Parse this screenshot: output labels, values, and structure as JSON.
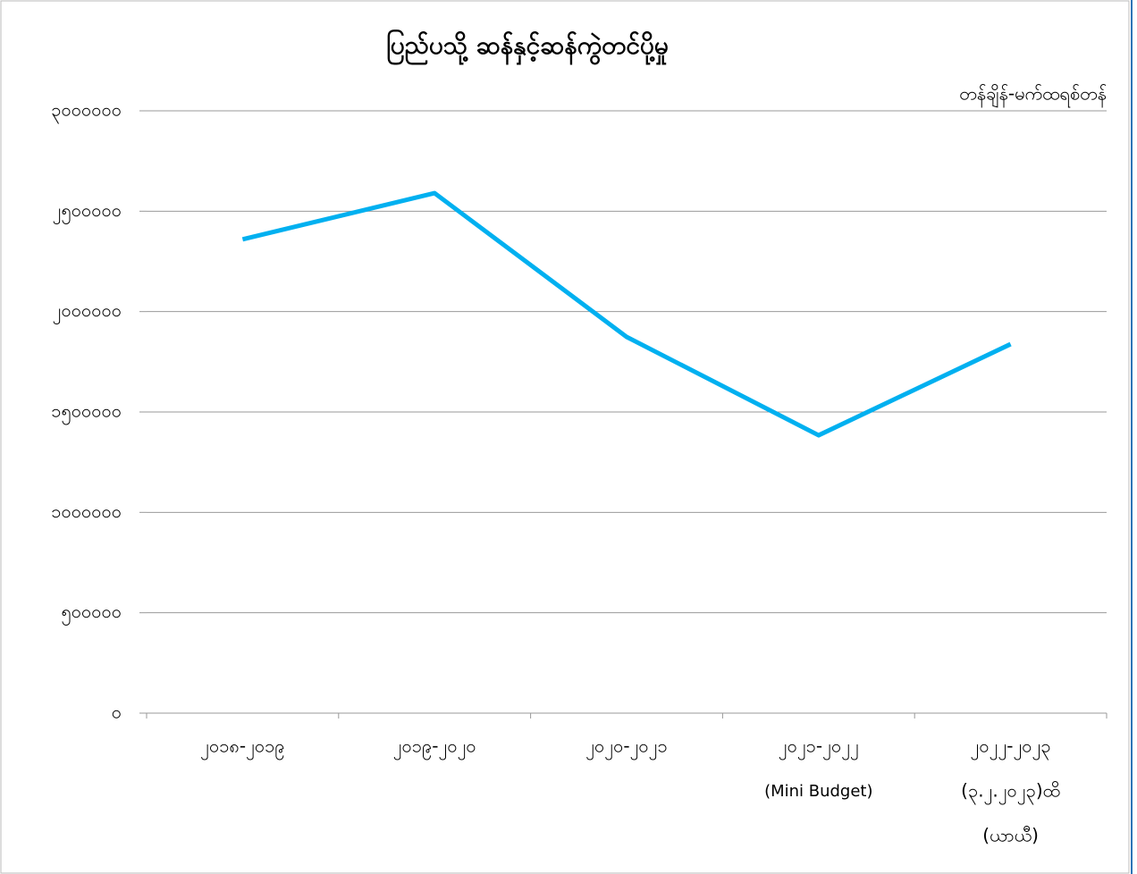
{
  "chart_data": {
    "type": "line",
    "title": "ပြည်ပသို့ ဆန်နှင့်ဆန်ကွဲတင်ပို့မှု",
    "y_axis_label": "တန်ချိန်-မက်ထရစ်တန်",
    "categories": [
      [
        "၂၀၁၈-၂၀၁၉"
      ],
      [
        "၂၀၁၉-၂၀၂၀"
      ],
      [
        "၂၀၂၀-၂၀၂၁"
      ],
      [
        "၂၀၂၁-၂၀၂၂",
        "(Mini Budget)"
      ],
      [
        "၂၀၂၂-၂၀၂၃",
        "(၃.၂.၂၀၂၃)ထိ",
        "(ယာယီ)"
      ]
    ],
    "series": [
      {
        "name": "ပြည်ပသို့ ဆန်နှင့်ဆန်ကွဲတင်ပို့မှု",
        "color": "#00b0f0",
        "values": [
          2360000,
          2590000,
          1874000,
          1384000,
          1838000
        ]
      }
    ],
    "ylim": [
      0,
      3000000
    ],
    "yticks": [
      {
        "value": 0,
        "label": "၀"
      },
      {
        "value": 500000,
        "label": "၅၀၀၀၀၀"
      },
      {
        "value": 1000000,
        "label": "၁၀၀၀၀၀၀"
      },
      {
        "value": 1500000,
        "label": "၁၅၀၀၀၀၀"
      },
      {
        "value": 2000000,
        "label": "၂၀၀၀၀၀၀"
      },
      {
        "value": 2500000,
        "label": "၂၅၀၀၀၀၀"
      },
      {
        "value": 3000000,
        "label": "၃၀၀၀၀၀၀"
      }
    ],
    "grid": true
  }
}
